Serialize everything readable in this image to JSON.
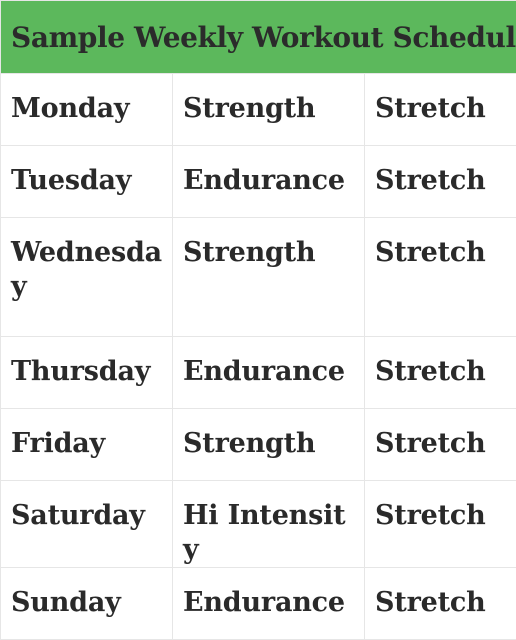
{
  "table": {
    "title": "Sample Weekly Workout Schedule",
    "rows": [
      {
        "day": "Monday",
        "workout": "Strength",
        "extra": "Stretch"
      },
      {
        "day": "Tuesday",
        "workout": "Endurance",
        "extra": "Stretch"
      },
      {
        "day": "Wednesday",
        "workout": "Strength",
        "extra": "Stretch"
      },
      {
        "day": "Thursday",
        "workout": "Endurance",
        "extra": "Stretch"
      },
      {
        "day": "Friday",
        "workout": "Strength",
        "extra": "Stretch"
      },
      {
        "day": "Saturday",
        "workout": "Hi Intensity",
        "extra": "Stretch"
      },
      {
        "day": "Sunday",
        "workout": "Endurance",
        "extra": "Stretch"
      }
    ]
  },
  "colors": {
    "header_bg": "#5cb85c",
    "text": "#2a2a2a",
    "border": "#e6e6e6"
  }
}
